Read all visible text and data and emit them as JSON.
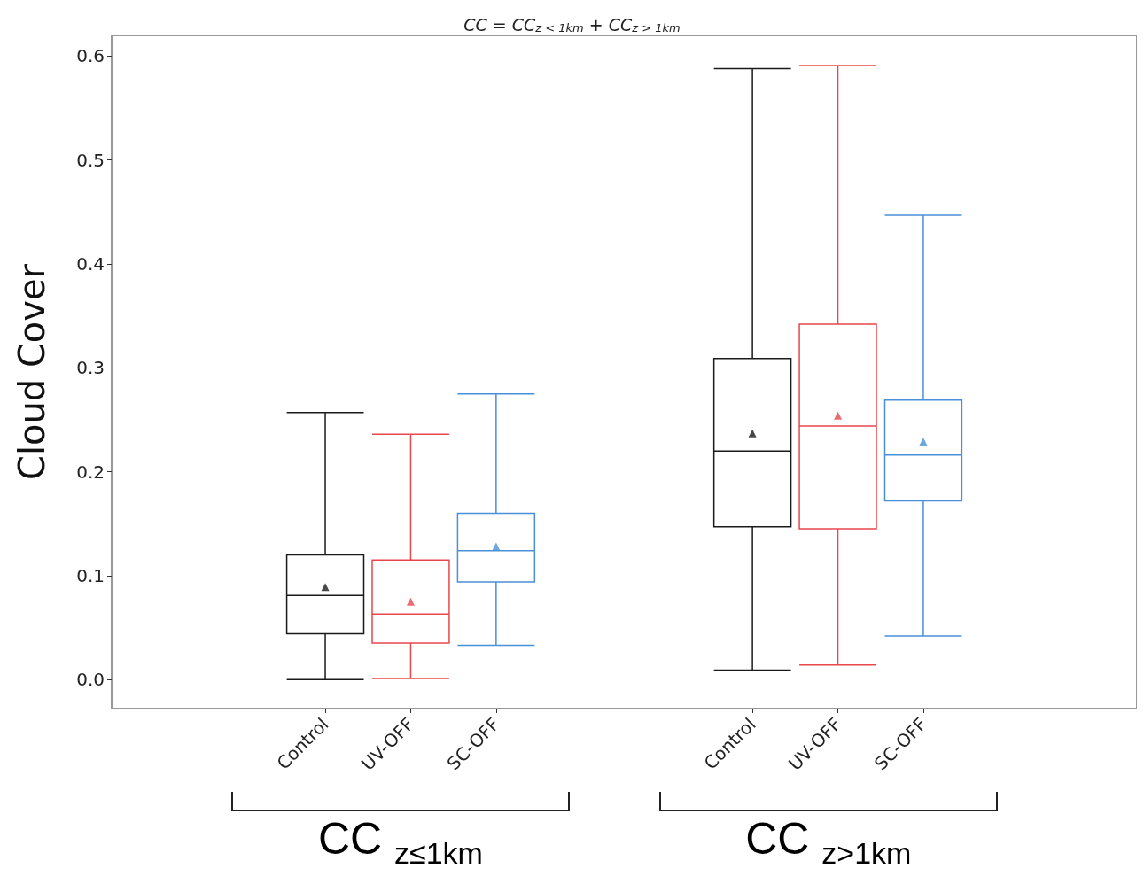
{
  "chart_data": {
    "type": "box",
    "title": "CC = CC$_{z < 1km}$ + CC$_{z > 1km}$",
    "ylabel": "Cloud Cover",
    "categories": [
      null,
      null,
      "Control",
      "UV-OFF",
      "SC-OFF",
      null,
      null,
      "Control",
      "UV-OFF",
      "SC-OFF",
      null,
      null
    ],
    "boxes": [
      null,
      null,
      {
        "low": 0.0,
        "q1": 0.044,
        "median": 0.081,
        "q3": 0.12,
        "high": 0.257,
        "mean": 0.089
      },
      {
        "low": 0.001,
        "q1": 0.035,
        "median": 0.063,
        "q3": 0.115,
        "high": 0.236,
        "mean": 0.075
      },
      {
        "low": 0.033,
        "q1": 0.094,
        "median": 0.124,
        "q3": 0.16,
        "high": 0.275,
        "mean": 0.128
      },
      null,
      null,
      {
        "low": 0.009,
        "q1": 0.147,
        "median": 0.22,
        "q3": 0.309,
        "high": 0.588,
        "mean": 0.237
      },
      {
        "low": 0.014,
        "q1": 0.145,
        "median": 0.244,
        "q3": 0.342,
        "high": 0.591,
        "mean": 0.254
      },
      {
        "low": 0.042,
        "q1": 0.172,
        "median": 0.216,
        "q3": 0.269,
        "high": 0.447,
        "mean": 0.229
      },
      null,
      null
    ],
    "colors": [
      null,
      null,
      "#1a1a1a",
      "#e8474c",
      "#4a90d9",
      null,
      null,
      "#1a1a1a",
      "#e8474c",
      "#4a90d9",
      null,
      null
    ],
    "ylim": [
      -0.028,
      0.62
    ],
    "yticks": [
      {
        "value": 0,
        "label": "0.0"
      },
      {
        "value": 0.1,
        "label": "0.1"
      },
      {
        "value": 0.2,
        "label": "0.2"
      },
      {
        "value": 0.3,
        "label": "0.3"
      },
      {
        "value": 0.4,
        "label": "0.4"
      },
      {
        "value": 0.5,
        "label": "0.5"
      },
      {
        "value": 0.6,
        "label": "0.6"
      }
    ],
    "grid": false,
    "marker": "triangle",
    "annotations": [
      "CC $_{z≤1km}$",
      "CC $_{z>1km}$"
    ]
  }
}
